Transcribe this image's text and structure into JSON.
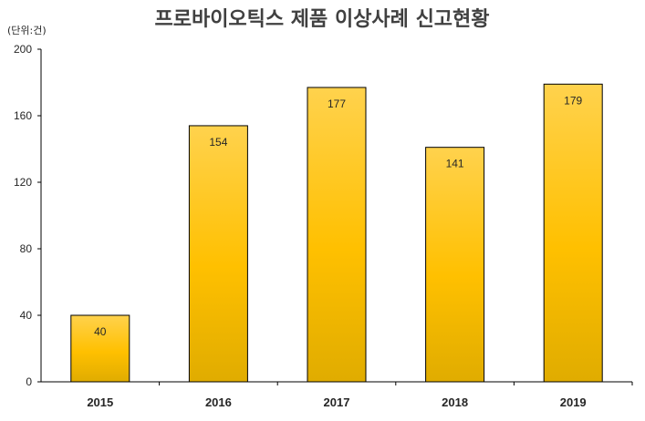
{
  "chart_data": {
    "type": "bar",
    "title": "프로바이오틱스 제품 이상사례 신고현황",
    "unit_label": "(단위:건)",
    "xlabel": "",
    "ylabel": "",
    "categories": [
      "2015",
      "2016",
      "2017",
      "2018",
      "2019"
    ],
    "values": [
      40,
      154,
      177,
      141,
      179
    ],
    "ylim": [
      0,
      200
    ],
    "yticks": [
      0,
      40,
      80,
      120,
      160,
      200
    ],
    "data_labels": true,
    "grid": false,
    "legend": "none",
    "colors": {
      "bar_top": "#ffd24d",
      "bar_mid": "#ffc000",
      "bar_bottom": "#e0ac00",
      "bar_stroke": "#000000",
      "axis": "#000000",
      "title": "#404040"
    }
  }
}
